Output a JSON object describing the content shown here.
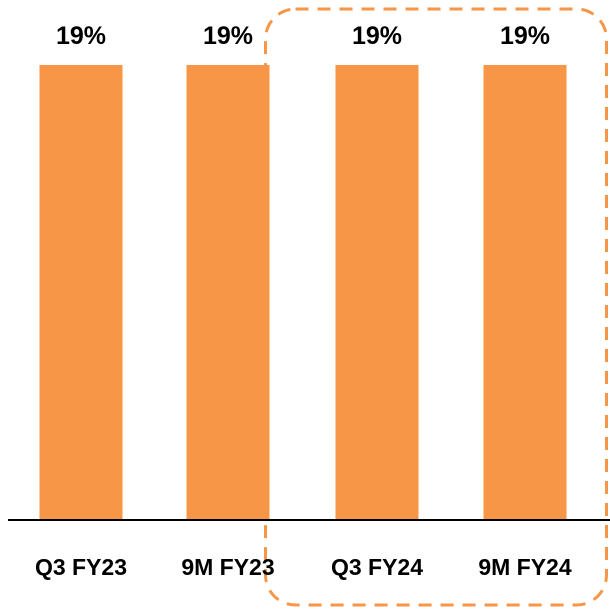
{
  "chart_data": {
    "type": "bar",
    "categories": [
      "Q3 FY23",
      "9M FY23",
      "Q3 FY24",
      "9M FY24"
    ],
    "values": [
      19,
      19,
      19,
      19
    ],
    "data_labels": [
      "19%",
      "19%",
      "19%",
      "19%"
    ],
    "title": "",
    "xlabel": "",
    "ylabel": "",
    "ylim": [
      0,
      20
    ],
    "grid": false,
    "legend": "none",
    "highlighted_categories": [
      "Q3 FY24",
      "9M FY24"
    ]
  },
  "colors": {
    "bar": "#F79646",
    "highlight_outline": "#F79646",
    "axis": "#000000"
  }
}
